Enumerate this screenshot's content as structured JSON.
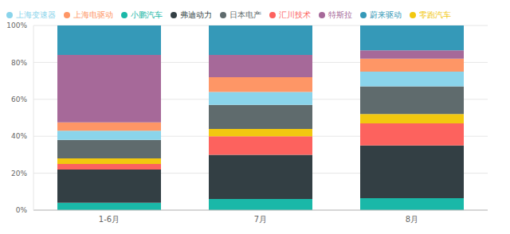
{
  "chart_data": {
    "type": "bar",
    "stacked": true,
    "grid": true,
    "legend": "top-left",
    "categories": [
      "1-6月",
      "7月",
      "8月"
    ],
    "ylim": [
      0,
      100
    ],
    "yticks": [
      {
        "value": 0,
        "label": "0%"
      },
      {
        "value": 20,
        "label": "20%"
      },
      {
        "value": 40,
        "label": "40%"
      },
      {
        "value": 60,
        "label": "60%"
      },
      {
        "value": 80,
        "label": "80%"
      },
      {
        "value": 100,
        "label": "100%"
      }
    ],
    "series": [
      {
        "name": "小鹏汽车",
        "color": "#1ab8a8",
        "values": [
          4,
          6,
          6.5
        ]
      },
      {
        "name": "弗迪动力",
        "color": "#333f44",
        "values": [
          18,
          24,
          28.5
        ]
      },
      {
        "name": "汇川技术",
        "color": "#fd625e",
        "values": [
          3,
          10,
          12
        ]
      },
      {
        "name": "零跑汽车",
        "color": "#f2c80f",
        "values": [
          3,
          4,
          5
        ]
      },
      {
        "name": "日本电产",
        "color": "#5f6b6d",
        "values": [
          10,
          13,
          15
        ]
      },
      {
        "name": "上海变速器",
        "color": "#8ad4eb",
        "values": [
          5,
          7,
          8
        ]
      },
      {
        "name": "上海电驱动",
        "color": "#fe9666",
        "values": [
          4.5,
          8,
          7
        ]
      },
      {
        "name": "特斯拉",
        "color": "#a66999",
        "values": [
          36.5,
          12,
          4.5
        ]
      },
      {
        "name": "蔚来驱动",
        "color": "#3599b8",
        "values": [
          16,
          16,
          13.5
        ]
      }
    ]
  }
}
